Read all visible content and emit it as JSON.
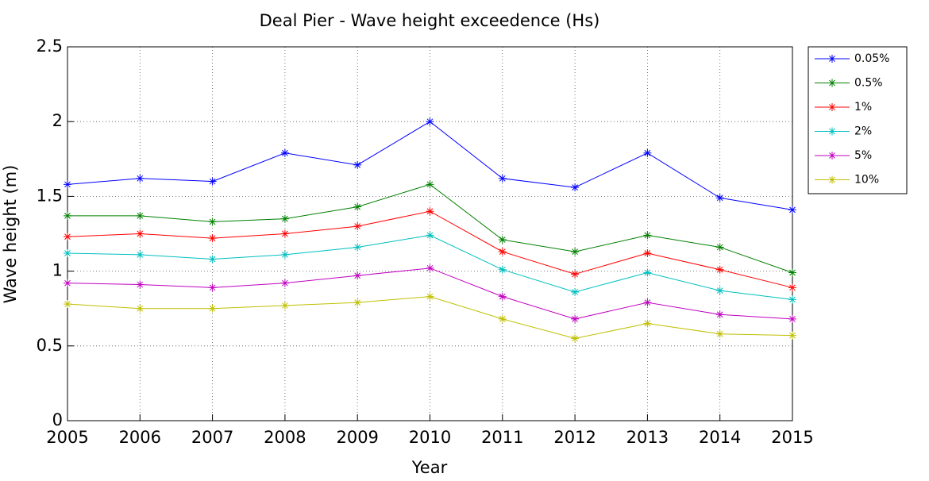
{
  "chart_data": {
    "type": "line",
    "title": "Deal Pier - Wave height exceedence (Hs)",
    "xlabel": "Year",
    "ylabel": "Wave height (m)",
    "x": [
      2005,
      2006,
      2007,
      2008,
      2009,
      2010,
      2011,
      2012,
      2013,
      2014,
      2015
    ],
    "xlim": [
      2005,
      2015
    ],
    "xticks": [
      2005,
      2006,
      2007,
      2008,
      2009,
      2010,
      2011,
      2012,
      2013,
      2014,
      2015
    ],
    "ylim": [
      0,
      2.5
    ],
    "yticks": [
      0,
      0.5,
      1,
      1.5,
      2,
      2.5
    ],
    "grid": true,
    "legend": "outside-right",
    "series": [
      {
        "name": "0.05%",
        "color": "#0000ff",
        "values": [
          1.58,
          1.62,
          1.6,
          1.79,
          1.71,
          2.0,
          1.62,
          1.56,
          1.79,
          1.49,
          1.41
        ]
      },
      {
        "name": "0.5%",
        "color": "#008000",
        "values": [
          1.37,
          1.37,
          1.33,
          1.35,
          1.43,
          1.58,
          1.21,
          1.13,
          1.24,
          1.16,
          0.99
        ]
      },
      {
        "name": "1%",
        "color": "#ff0000",
        "values": [
          1.23,
          1.25,
          1.22,
          1.25,
          1.3,
          1.4,
          1.13,
          0.98,
          1.12,
          1.01,
          0.89
        ]
      },
      {
        "name": "2%",
        "color": "#00bfbf",
        "values": [
          1.12,
          1.11,
          1.08,
          1.11,
          1.16,
          1.24,
          1.01,
          0.86,
          0.99,
          0.87,
          0.81
        ]
      },
      {
        "name": "5%",
        "color": "#bf00bf",
        "values": [
          0.92,
          0.91,
          0.89,
          0.92,
          0.97,
          1.02,
          0.83,
          0.68,
          0.79,
          0.71,
          0.68
        ]
      },
      {
        "name": "10%",
        "color": "#bfbf00",
        "values": [
          0.78,
          0.75,
          0.75,
          0.77,
          0.79,
          0.83,
          0.68,
          0.55,
          0.65,
          0.58,
          0.57
        ]
      }
    ]
  }
}
